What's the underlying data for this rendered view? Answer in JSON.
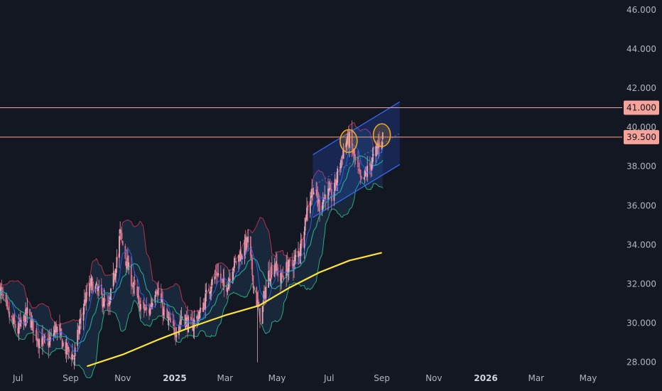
{
  "chart_data": {
    "type": "candlestick",
    "title": "",
    "xlabel": "",
    "ylabel": "",
    "ylim": [
      27.7,
      46.5
    ],
    "x_range": [
      "2024-06-10",
      "2026-06-10"
    ],
    "y_ticks": [
      "28.000",
      "30.000",
      "32.000",
      "34.000",
      "36.000",
      "38.000",
      "40.000",
      "42.000",
      "44.000",
      "46.000"
    ],
    "x_ticks": [
      {
        "date": "2024-07-01",
        "label": "Jul",
        "bold": false
      },
      {
        "date": "2024-09-01",
        "label": "Sep",
        "bold": false
      },
      {
        "date": "2024-11-01",
        "label": "Nov",
        "bold": false
      },
      {
        "date": "2025-01-01",
        "label": "2025",
        "bold": true
      },
      {
        "date": "2025-03-01",
        "label": "Mar",
        "bold": false
      },
      {
        "date": "2025-05-01",
        "label": "May",
        "bold": false
      },
      {
        "date": "2025-07-01",
        "label": "Jul",
        "bold": false
      },
      {
        "date": "2025-09-01",
        "label": "Sep",
        "bold": false
      },
      {
        "date": "2025-11-01",
        "label": "Nov",
        "bold": false
      },
      {
        "date": "2026-01-01",
        "label": "2026",
        "bold": true
      },
      {
        "date": "2026-03-01",
        "label": "Mar",
        "bold": false
      },
      {
        "date": "2026-05-01",
        "label": "May",
        "bold": false
      }
    ],
    "price_path": [
      [
        "2024-06-10",
        31.8
      ],
      [
        "2024-06-20",
        30.4
      ],
      [
        "2024-07-01",
        29.6
      ],
      [
        "2024-07-12",
        30.5
      ],
      [
        "2024-07-25",
        29.2
      ],
      [
        "2024-08-05",
        28.9
      ],
      [
        "2024-08-15",
        29.8
      ],
      [
        "2024-08-25",
        28.7
      ],
      [
        "2024-09-05",
        28.3
      ],
      [
        "2024-09-15",
        30.8
      ],
      [
        "2024-09-25",
        32.0
      ],
      [
        "2024-10-05",
        31.5
      ],
      [
        "2024-10-15",
        30.6
      ],
      [
        "2024-10-22",
        32.5
      ],
      [
        "2024-10-29",
        34.6
      ],
      [
        "2024-11-05",
        33.2
      ],
      [
        "2024-11-12",
        32.1
      ],
      [
        "2024-11-20",
        31.0
      ],
      [
        "2024-12-01",
        30.5
      ],
      [
        "2024-12-10",
        31.9
      ],
      [
        "2024-12-20",
        30.4
      ],
      [
        "2025-01-01",
        29.6
      ],
      [
        "2025-01-10",
        30.4
      ],
      [
        "2025-01-20",
        29.8
      ],
      [
        "2025-02-01",
        30.6
      ],
      [
        "2025-02-10",
        31.8
      ],
      [
        "2025-02-20",
        32.6
      ],
      [
        "2025-03-01",
        31.7
      ],
      [
        "2025-03-10",
        32.9
      ],
      [
        "2025-03-20",
        33.6
      ],
      [
        "2025-03-28",
        34.2
      ],
      [
        "2025-04-05",
        31.5
      ],
      [
        "2025-04-12",
        30.2
      ],
      [
        "2025-04-20",
        32.4
      ],
      [
        "2025-04-28",
        33.1
      ],
      [
        "2025-05-05",
        32.2
      ],
      [
        "2025-05-12",
        32.8
      ],
      [
        "2025-05-20",
        33.0
      ],
      [
        "2025-05-28",
        33.8
      ],
      [
        "2025-06-05",
        35.8
      ],
      [
        "2025-06-12",
        36.9
      ],
      [
        "2025-06-20",
        36.0
      ],
      [
        "2025-06-28",
        36.7
      ],
      [
        "2025-07-05",
        36.4
      ],
      [
        "2025-07-12",
        37.8
      ],
      [
        "2025-07-20",
        39.2
      ],
      [
        "2025-07-25",
        39.4
      ],
      [
        "2025-08-01",
        38.2
      ],
      [
        "2025-08-08",
        37.1
      ],
      [
        "2025-08-15",
        37.8
      ],
      [
        "2025-08-22",
        38.4
      ],
      [
        "2025-08-28",
        39.1
      ],
      [
        "2025-09-02",
        39.6
      ]
    ],
    "moving_average_200": [
      [
        "2024-09-20",
        27.8
      ],
      [
        "2024-11-01",
        28.4
      ],
      [
        "2024-12-15",
        29.2
      ],
      [
        "2025-01-20",
        29.8
      ],
      [
        "2025-03-01",
        30.4
      ],
      [
        "2025-04-10",
        30.9
      ],
      [
        "2025-05-15",
        31.8
      ],
      [
        "2025-06-20",
        32.6
      ],
      [
        "2025-07-25",
        33.2
      ],
      [
        "2025-09-01",
        33.6
      ]
    ],
    "horizontal_lines": [
      {
        "value": 41.0,
        "label": "41.000"
      },
      {
        "value": 39.5,
        "label": "39.500"
      }
    ],
    "channel": {
      "start": "2025-06-12",
      "end": "2025-09-22",
      "upper": [
        38.6,
        41.3
      ],
      "lower": [
        35.4,
        38.1
      ]
    },
    "highlight_circles": [
      {
        "date": "2025-07-24",
        "value": 39.3
      },
      {
        "date": "2025-09-01",
        "value": 39.6
      }
    ],
    "colors": {
      "background": "#131722",
      "up_candle": "#e3a6b8",
      "down_candle": "#d86b8a",
      "ma_200": "#ffe438",
      "bollinger_upper": "#c4344f",
      "bollinger_lower": "#2bb989",
      "ma_fast": "#2962ff",
      "ma_mid": "#26a69a",
      "horizontal_line": "#f7a399",
      "channel": "#2962ff",
      "circle": "#f5a623"
    }
  }
}
